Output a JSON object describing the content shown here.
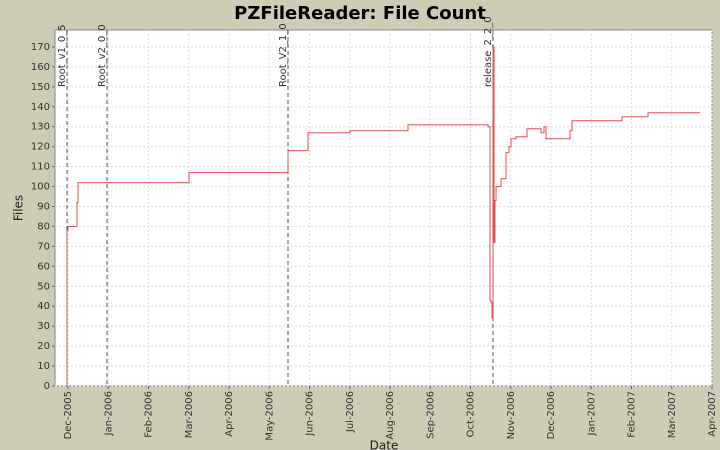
{
  "chart_data": {
    "type": "line",
    "step": true,
    "title": "PZFileReader: File Count",
    "x_label": "Date",
    "y_label": "Files",
    "color": "#e05050",
    "grid": true,
    "x": [
      -0.037,
      -0.025,
      0,
      0.224,
      0.248,
      3.006,
      5.466,
      5.963,
      7.006,
      8.447,
      10.435,
      10.484,
      10.509,
      10.534,
      10.559,
      10.584,
      10.609,
      10.634,
      10.758,
      10.882,
      10.957,
      11.006,
      11.13,
      11.404,
      11.752,
      11.826,
      11.876,
      12.472,
      12.522,
      13.764,
      14.41,
      15.702
    ],
    "values": [
      0,
      78,
      80,
      92,
      102,
      107,
      118,
      127,
      128,
      131,
      130,
      43,
      42,
      34,
      170,
      72,
      93,
      100,
      104,
      117,
      120,
      124,
      125,
      129,
      127,
      130,
      124,
      128,
      133,
      135,
      137,
      137
    ],
    "markers": [
      {
        "x": -0.025,
        "label": "Root_v1_0_5"
      },
      {
        "x": 0.969,
        "label": "Root_v2_0_0"
      },
      {
        "x": 5.466,
        "label": "Root_V2_1_0"
      },
      {
        "x": 10.559,
        "label": "release_2_2_0"
      }
    ],
    "xlim": [
      -0.323,
      16
    ],
    "xticks": [
      {
        "value": 0,
        "label": "Dec-2005"
      },
      {
        "value": 1,
        "label": "Jan-2006"
      },
      {
        "value": 2,
        "label": "Feb-2006"
      },
      {
        "value": 3,
        "label": "Mar-2006"
      },
      {
        "value": 4,
        "label": "Apr-2006"
      },
      {
        "value": 5,
        "label": "May-2006"
      },
      {
        "value": 6,
        "label": "Jun-2006"
      },
      {
        "value": 7,
        "label": "Jul-2006"
      },
      {
        "value": 8,
        "label": "Aug-2006"
      },
      {
        "value": 9,
        "label": "Sep-2006"
      },
      {
        "value": 10,
        "label": "Oct-2006"
      },
      {
        "value": 11,
        "label": "Nov-2006"
      },
      {
        "value": 12,
        "label": "Dec-2006"
      },
      {
        "value": 13,
        "label": "Jan-2007"
      },
      {
        "value": 14,
        "label": "Feb-2007"
      },
      {
        "value": 15,
        "label": "Mar-2007"
      },
      {
        "value": 16,
        "label": "Apr-2007"
      }
    ],
    "ylim": [
      0,
      178.5
    ],
    "yticks": [
      0,
      10,
      20,
      30,
      40,
      50,
      60,
      70,
      80,
      90,
      100,
      110,
      120,
      130,
      140,
      150,
      160,
      170
    ]
  }
}
